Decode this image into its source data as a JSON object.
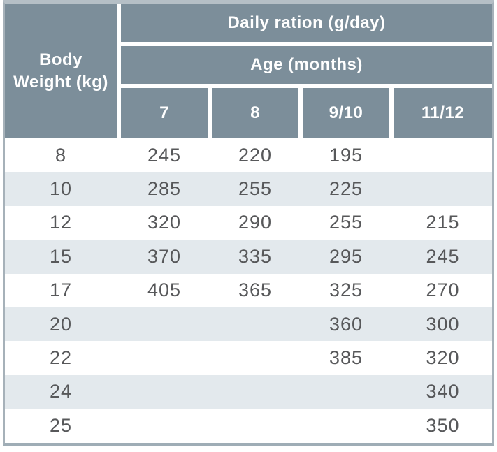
{
  "chart_data": {
    "type": "table",
    "title": "Daily ration (g/day)",
    "subtitle": "Age (months)",
    "row_header": "Body Weight (kg)",
    "row_header_lines": [
      "Body",
      "Weight (kg)"
    ],
    "columns": [
      "7",
      "8",
      "9/10",
      "11/12"
    ],
    "rows": [
      {
        "weight": "8",
        "values": [
          "245",
          "220",
          "195",
          ""
        ]
      },
      {
        "weight": "10",
        "values": [
          "285",
          "255",
          "225",
          ""
        ]
      },
      {
        "weight": "12",
        "values": [
          "320",
          "290",
          "255",
          "215"
        ]
      },
      {
        "weight": "15",
        "values": [
          "370",
          "335",
          "295",
          "245"
        ]
      },
      {
        "weight": "17",
        "values": [
          "405",
          "365",
          "325",
          "270"
        ]
      },
      {
        "weight": "20",
        "values": [
          "",
          "",
          "360",
          "300"
        ]
      },
      {
        "weight": "22",
        "values": [
          "",
          "",
          "385",
          "320"
        ]
      },
      {
        "weight": "24",
        "values": [
          "",
          "",
          "",
          "340"
        ]
      },
      {
        "weight": "25",
        "values": [
          "",
          "",
          "",
          "350"
        ]
      }
    ]
  },
  "colors": {
    "header_bg": "#7c8e9a",
    "header_text": "#ffffff",
    "stripe_bg": "#e3e9ed",
    "row_text": "#57585a",
    "border_top": "#b5bfc6",
    "border_bottom": "#9fadb6",
    "border_side": "#a6b1b9"
  }
}
